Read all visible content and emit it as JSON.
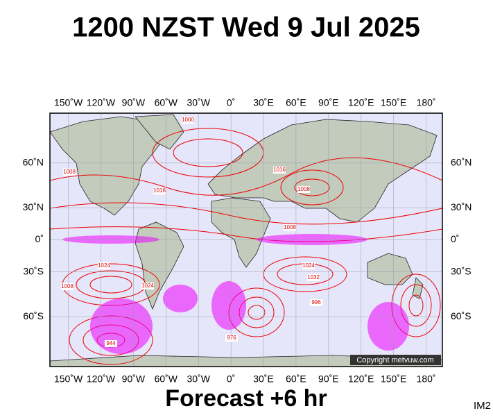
{
  "title": "1200 NZST Wed 9 Jul 2025",
  "map": {
    "xlim": [
      -167,
      195
    ],
    "ylim": [
      -77,
      77
    ],
    "lon_ticks": [
      {
        "value": -150,
        "label": "150˚W"
      },
      {
        "value": -120,
        "label": "120˚W"
      },
      {
        "value": -90,
        "label": "90˚W"
      },
      {
        "value": -60,
        "label": "60˚W"
      },
      {
        "value": -30,
        "label": "30˚W"
      },
      {
        "value": 0,
        "label": "0˚"
      },
      {
        "value": 30,
        "label": "30˚E"
      },
      {
        "value": 60,
        "label": "60˚E"
      },
      {
        "value": 90,
        "label": "90˚E"
      },
      {
        "value": 120,
        "label": "120˚E"
      },
      {
        "value": 150,
        "label": "150˚E"
      },
      {
        "value": 180,
        "label": "180˚"
      }
    ],
    "lat_ticks": [
      {
        "value": 60,
        "label": "60˚N"
      },
      {
        "value": 30,
        "label": "30˚N"
      },
      {
        "value": 0,
        "label": "0˚"
      },
      {
        "value": -30,
        "label": "30˚S"
      },
      {
        "value": -60,
        "label": "60˚S"
      }
    ],
    "isobar_labels": [
      1000,
      1008,
      1016,
      1024,
      1008,
      1016,
      1008,
      1008,
      1024,
      1032,
      1024,
      996,
      976,
      944
    ]
  },
  "footer": {
    "forecast": "Forecast +6 hr",
    "copyright": "Copyright metvuw.com",
    "image_id": "IM2"
  }
}
